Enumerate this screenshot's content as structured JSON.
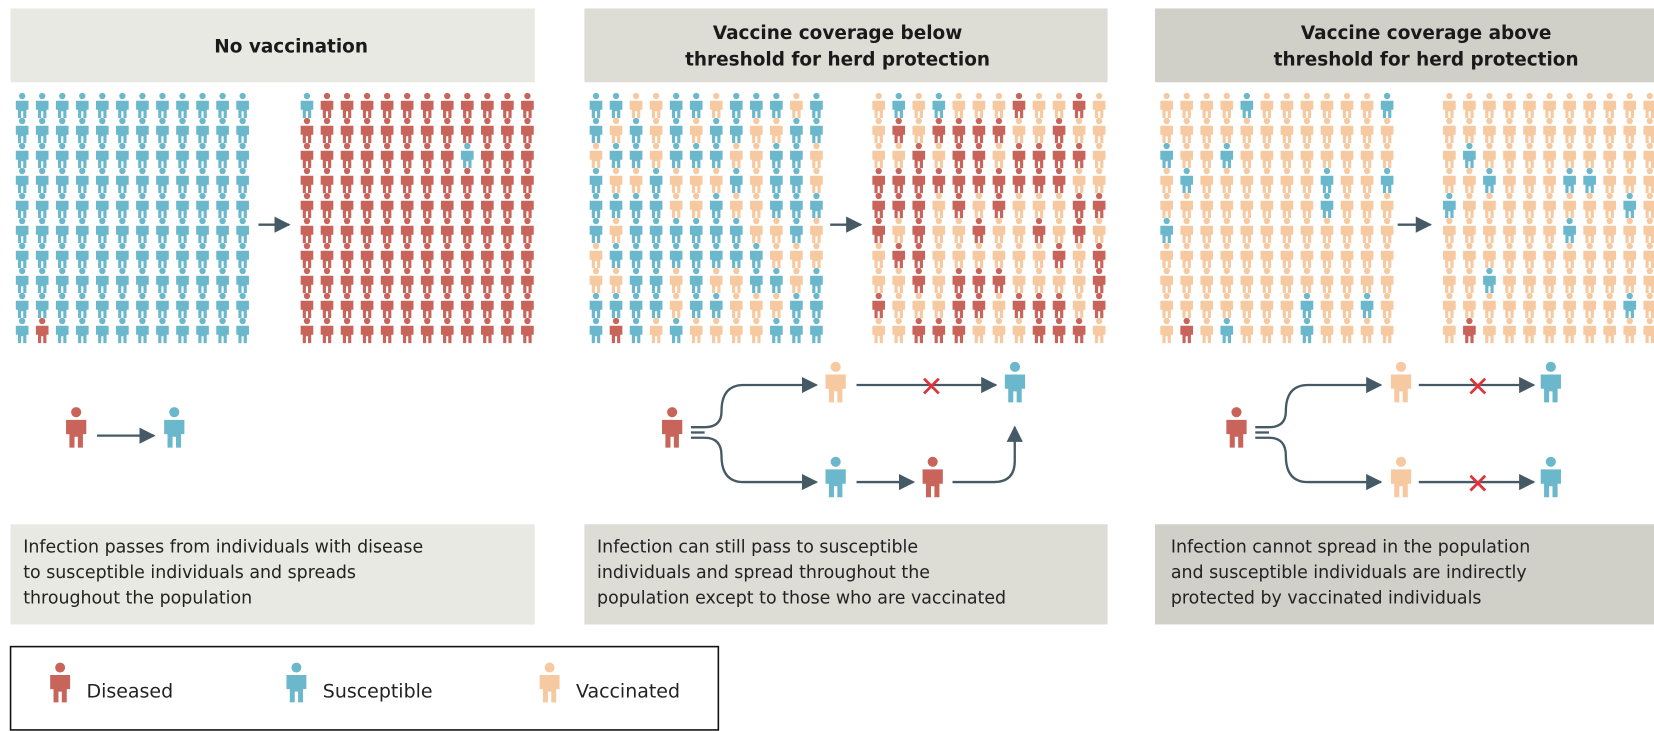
{
  "panels": [
    {
      "title_lines": [
        "No vaccination"
      ],
      "caption_lines": [
        "Infection passes from individuals with disease",
        "to susceptible individuals and spreads",
        "throughout the population"
      ]
    },
    {
      "title_lines": [
        "Vaccine coverage below",
        "threshold for herd protection"
      ],
      "caption_lines": [
        "Infection can still pass to susceptible",
        "individuals and spread throughout the",
        "population except to those who are vaccinated"
      ]
    },
    {
      "title_lines": [
        "Vaccine coverage above",
        "threshold for herd protection"
      ],
      "caption_lines": [
        "Infection cannot spread in the population",
        "and susceptible individuals are indirectly",
        "protected by vaccinated individuals"
      ]
    }
  ],
  "legend": [
    {
      "label": "Diseased",
      "color": "#c8645a"
    },
    {
      "label": "Susceptible",
      "color": "#6bb8cc"
    },
    {
      "label": "Vaccinated",
      "color": "#f6c9a0"
    }
  ]
}
